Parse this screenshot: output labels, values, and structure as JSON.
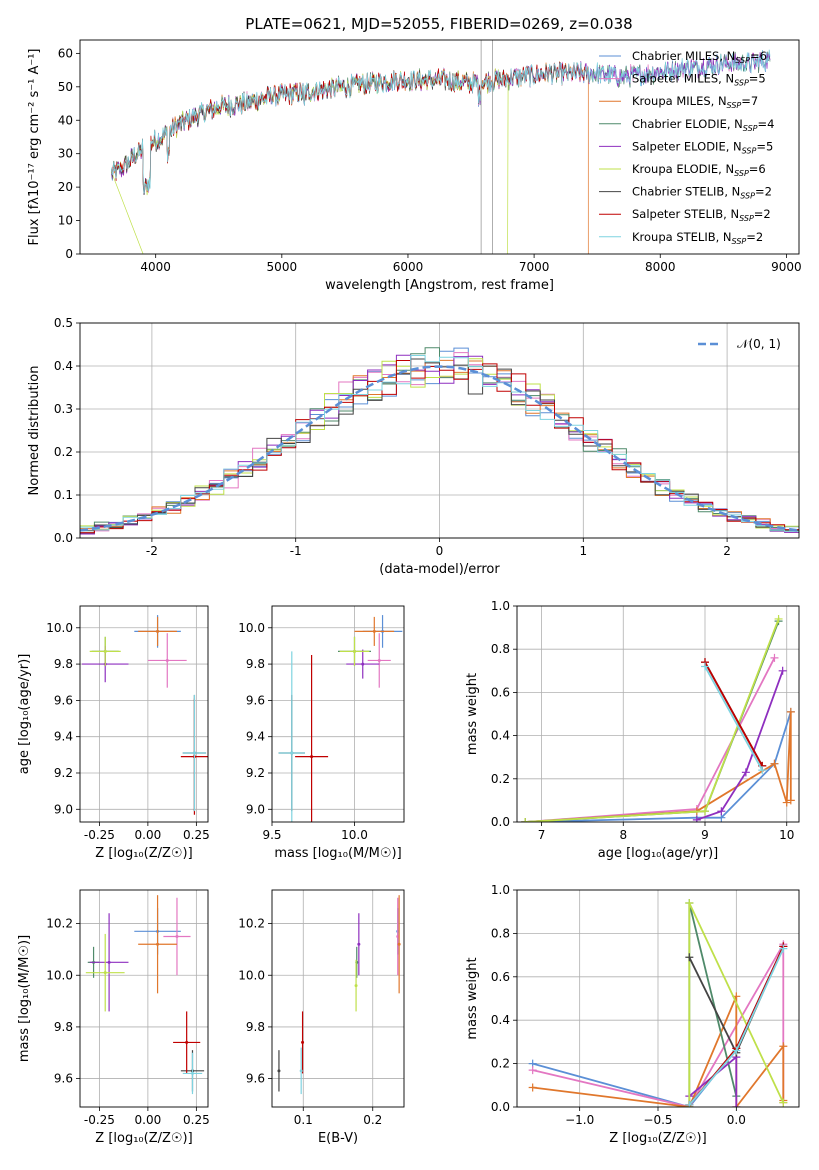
{
  "figure": {
    "title": "PLATE=0621, MJD=52055, FIBERID=0269, z=0.038"
  },
  "models": [
    {
      "name": "Chabrier MILES",
      "nssp": "6",
      "color": "#5b8fd6"
    },
    {
      "name": "Salpeter MILES",
      "nssp": "5",
      "color": "#e377c2"
    },
    {
      "name": "Kroupa MILES",
      "nssp": "7",
      "color": "#e0772c"
    },
    {
      "name": "Chabrier ELODIE",
      "nssp": "4",
      "color": "#4f8a6a"
    },
    {
      "name": "Salpeter ELODIE",
      "nssp": "5",
      "color": "#8e2fbf"
    },
    {
      "name": "Kroupa ELODIE",
      "nssp": "6",
      "color": "#bfe04a"
    },
    {
      "name": "Chabrier STELIB",
      "nssp": "2",
      "color": "#444444"
    },
    {
      "name": "Salpeter STELIB",
      "nssp": "2",
      "color": "#c00000"
    },
    {
      "name": "Kroupa STELIB",
      "nssp": "2",
      "color": "#7fd3e0"
    }
  ],
  "chart_data": [
    {
      "id": "spectrum",
      "type": "line",
      "title": "PLATE=0621, MJD=52055, FIBERID=0269, z=0.038",
      "xlabel": "wavelength [Angstrom, rest frame]",
      "ylabel": "Flux [fλ10⁻¹⁷ erg cm⁻² s⁻¹ A⁻¹]",
      "xlim": [
        3400,
        9100
      ],
      "ylim": [
        0,
        64
      ],
      "xticks": [
        4000,
        5000,
        6000,
        7000,
        8000,
        9000
      ],
      "yticks": [
        0,
        10,
        20,
        30,
        40,
        50,
        60
      ],
      "grid": false,
      "legend": "upper right",
      "continuum": {
        "x": [
          3650,
          3750,
          3850,
          3950,
          4050,
          4150,
          4300,
          4500,
          4700,
          4900,
          5100,
          5300,
          5500,
          5700,
          5900,
          6100,
          6300,
          6500,
          6700,
          6900,
          7100,
          7300,
          7500,
          7700,
          7900,
          8100,
          8300,
          8500,
          8700,
          8850
        ],
        "y": [
          24,
          26,
          30,
          33,
          35,
          38,
          41,
          44,
          45,
          47,
          48,
          49,
          50,
          51,
          52,
          52,
          52,
          51,
          52,
          53,
          54,
          54,
          54,
          53,
          54,
          55,
          56,
          57,
          57,
          58
        ]
      },
      "features": {
        "Kroupa ELODIE drop at": 3920,
        "Chabrier STELIB spikes at": [
          6580,
          6670
        ],
        "Kroupa ELODIE drop near": 6780,
        "Kroupa MILES drop at": 7430
      }
    },
    {
      "id": "residuals",
      "type": "line",
      "xlabel": "(data-model)/error",
      "ylabel": "Normed distribution",
      "xlim": [
        -2.5,
        2.5
      ],
      "ylim": [
        0,
        0.5
      ],
      "xticks": [
        -2,
        -1,
        0,
        1,
        2
      ],
      "yticks": [
        0.0,
        0.1,
        0.2,
        0.3,
        0.4,
        0.5
      ],
      "grid": true,
      "legend_label": "𝒩(0, 1)",
      "legend": "upper right",
      "gaussian": {
        "mean": 0,
        "sigma": 1,
        "color": "#5b8fd6"
      },
      "bin_width": 0.1
    },
    {
      "id": "age_vs_z",
      "type": "scatter",
      "xlabel": "Z [log₁₀(Z/Z☉)]",
      "ylabel": "age  [log₁₀(age/yr)]",
      "xlim": [
        -0.35,
        0.31
      ],
      "ylim": [
        8.93,
        10.12
      ],
      "xticks": [
        -0.25,
        0.0,
        0.25
      ],
      "yticks": [
        9.0,
        9.2,
        9.4,
        9.6,
        9.8,
        10.0
      ],
      "grid": true,
      "points": [
        {
          "model": 0,
          "x": 0.05,
          "y": 9.98,
          "xerr": 0.12,
          "yerr": 0.09
        },
        {
          "model": 1,
          "x": 0.1,
          "y": 9.82,
          "xerr": 0.1,
          "yerr": 0.15
        },
        {
          "model": 2,
          "x": 0.05,
          "y": 9.98,
          "xerr": 0.1,
          "yerr": 0.08
        },
        {
          "model": 3,
          "x": -0.22,
          "y": 9.87,
          "xerr": 0.07,
          "yerr": 0.08
        },
        {
          "model": 4,
          "x": -0.22,
          "y": 9.8,
          "xerr": 0.12,
          "yerr": 0.1
        },
        {
          "model": 5,
          "x": -0.22,
          "y": 9.87,
          "xerr": 0.08,
          "yerr": 0.08
        },
        {
          "model": 6,
          "x": 0.24,
          "y": 9.31,
          "xerr": 0.06,
          "yerr": 0.32
        },
        {
          "model": 7,
          "x": 0.24,
          "y": 9.29,
          "xerr": 0.07,
          "yerr": 0.32
        },
        {
          "model": 8,
          "x": 0.24,
          "y": 9.31,
          "xerr": 0.06,
          "yerr": 0.32
        }
      ]
    },
    {
      "id": "age_vs_mass",
      "type": "scatter",
      "xlabel": "mass [log₁₀(M/M☉)]",
      "ylabel": "",
      "xlim": [
        9.5,
        10.3
      ],
      "ylim": [
        8.93,
        10.12
      ],
      "xticks": [
        9.5,
        10.0
      ],
      "yticks": [
        9.0,
        9.2,
        9.4,
        9.6,
        9.8,
        10.0
      ],
      "grid": true,
      "points": [
        {
          "model": 0,
          "x": 10.17,
          "y": 9.98,
          "xerr": 0.12,
          "yerr": 0.09
        },
        {
          "model": 1,
          "x": 10.15,
          "y": 9.82,
          "xerr": 0.07,
          "yerr": 0.15
        },
        {
          "model": 2,
          "x": 10.12,
          "y": 9.98,
          "xerr": 0.12,
          "yerr": 0.08
        },
        {
          "model": 3,
          "x": 10.0,
          "y": 9.87,
          "xerr": 0.1,
          "yerr": 0.08
        },
        {
          "model": 4,
          "x": 10.05,
          "y": 9.8,
          "xerr": 0.1,
          "yerr": 0.08
        },
        {
          "model": 5,
          "x": 10.0,
          "y": 9.87,
          "xerr": 0.09,
          "yerr": 0.08
        },
        {
          "model": 6,
          "x": 9.62,
          "y": 9.31,
          "xerr": 0.08,
          "yerr": 0.32
        },
        {
          "model": 7,
          "x": 9.74,
          "y": 9.29,
          "xerr": 0.1,
          "yerr": 0.56
        },
        {
          "model": 8,
          "x": 9.62,
          "y": 9.31,
          "xerr": 0.08,
          "yerr": 0.56
        }
      ]
    },
    {
      "id": "mass_weight_vs_age",
      "type": "line",
      "xlabel": "age  [log₁₀(age/yr)]",
      "ylabel": "mass weight",
      "xlim": [
        6.7,
        10.15
      ],
      "ylim": [
        0,
        1.0
      ],
      "xticks": [
        7,
        8,
        9,
        10
      ],
      "yticks": [
        0.0,
        0.2,
        0.4,
        0.6,
        0.8,
        1.0
      ],
      "grid": true,
      "series": [
        {
          "model": 0,
          "x": [
            6.8,
            8.9,
            9.2,
            9.85,
            10.05
          ],
          "y": [
            0.0,
            0.02,
            0.02,
            0.27,
            0.51
          ]
        },
        {
          "model": 1,
          "x": [
            6.8,
            8.9,
            9.85
          ],
          "y": [
            0.0,
            0.06,
            0.76
          ]
        },
        {
          "model": 2,
          "x": [
            6.8,
            8.9,
            9.85,
            10.0,
            10.05,
            10.05
          ],
          "y": [
            0.0,
            0.05,
            0.27,
            0.09,
            0.51,
            0.1
          ]
        },
        {
          "model": 3,
          "x": [
            6.8,
            9.0,
            9.9
          ],
          "y": [
            0.0,
            0.05,
            0.93
          ]
        },
        {
          "model": 4,
          "x": [
            8.9,
            9.2,
            9.5,
            9.95
          ],
          "y": [
            0.01,
            0.05,
            0.23,
            0.7
          ]
        },
        {
          "model": 5,
          "x": [
            6.8,
            9.0,
            9.9
          ],
          "y": [
            0.0,
            0.05,
            0.94
          ]
        },
        {
          "model": 6,
          "x": [
            9.0,
            9.7
          ],
          "y": [
            0.74,
            0.26
          ]
        },
        {
          "model": 7,
          "x": [
            9.0,
            9.7
          ],
          "y": [
            0.74,
            0.26
          ]
        },
        {
          "model": 8,
          "x": [
            9.0,
            9.7
          ],
          "y": [
            0.72,
            0.24
          ]
        }
      ]
    },
    {
      "id": "mass_vs_z",
      "type": "scatter",
      "xlabel": "Z [log₁₀(Z/Z☉)]",
      "ylabel": "mass [log₁₀(M/M☉)]",
      "xlim": [
        -0.35,
        0.31
      ],
      "ylim": [
        9.49,
        10.33
      ],
      "xticks": [
        -0.25,
        0.0,
        0.25
      ],
      "yticks": [
        9.6,
        9.8,
        10.0,
        10.2
      ],
      "grid": true,
      "points": [
        {
          "model": 0,
          "x": 0.05,
          "y": 10.17,
          "xerr": 0.12,
          "yerr": 0.09
        },
        {
          "model": 1,
          "x": 0.15,
          "y": 10.15,
          "xerr": 0.07,
          "yerr": 0.15
        },
        {
          "model": 2,
          "x": 0.05,
          "y": 10.12,
          "xerr": 0.1,
          "yerr": 0.19
        },
        {
          "model": 3,
          "x": -0.28,
          "y": 10.05,
          "xerr": 0.03,
          "yerr": 0.06
        },
        {
          "model": 4,
          "x": -0.2,
          "y": 10.05,
          "xerr": 0.1,
          "yerr": 0.19
        },
        {
          "model": 5,
          "x": -0.22,
          "y": 10.01,
          "xerr": 0.1,
          "yerr": 0.15
        },
        {
          "model": 6,
          "x": 0.23,
          "y": 9.63,
          "xerr": 0.06,
          "yerr": 0.08
        },
        {
          "model": 7,
          "x": 0.2,
          "y": 9.74,
          "xerr": 0.07,
          "yerr": 0.12
        },
        {
          "model": 8,
          "x": 0.23,
          "y": 9.62,
          "xerr": 0.05,
          "yerr": 0.08
        }
      ]
    },
    {
      "id": "mass_vs_ebv",
      "type": "scatter",
      "xlabel": "E(B-V)",
      "ylabel": "",
      "xlim": [
        0.055,
        0.245
      ],
      "ylim": [
        9.49,
        10.33
      ],
      "xticks": [
        0.1,
        0.2
      ],
      "yticks": [
        9.6,
        9.8,
        10.0,
        10.2
      ],
      "grid": true,
      "points": [
        {
          "model": 0,
          "x": 0.236,
          "y": 10.17,
          "xerr": 0,
          "yerr": 0.09
        },
        {
          "model": 1,
          "x": 0.236,
          "y": 10.15,
          "xerr": 0,
          "yerr": 0.15
        },
        {
          "model": 2,
          "x": 0.238,
          "y": 10.12,
          "xerr": 0,
          "yerr": 0.19
        },
        {
          "model": 3,
          "x": 0.177,
          "y": 10.05,
          "xerr": 0,
          "yerr": 0.06
        },
        {
          "model": 4,
          "x": 0.18,
          "y": 10.12,
          "xerr": 0,
          "yerr": 0.12
        },
        {
          "model": 5,
          "x": 0.176,
          "y": 9.96,
          "xerr": 0,
          "yerr": 0.1
        },
        {
          "model": 6,
          "x": 0.065,
          "y": 9.63,
          "xerr": 0,
          "yerr": 0.08
        },
        {
          "model": 7,
          "x": 0.099,
          "y": 9.74,
          "xerr": 0,
          "yerr": 0.12
        },
        {
          "model": 8,
          "x": 0.097,
          "y": 9.63,
          "xerr": 0,
          "yerr": 0.09
        }
      ]
    },
    {
      "id": "mass_weight_vs_z",
      "type": "line",
      "xlabel": "Z [log₁₀(Z/Z☉)]",
      "ylabel": "mass weight",
      "xlim": [
        -1.4,
        0.4
      ],
      "ylim": [
        0,
        1.0
      ],
      "xticks": [
        -1.0,
        -0.5,
        0.0
      ],
      "yticks": [
        0.0,
        0.2,
        0.4,
        0.6,
        0.8,
        1.0
      ],
      "grid": true,
      "series": [
        {
          "model": 0,
          "x": [
            -1.3,
            -0.3,
            0.0,
            0.3
          ],
          "y": [
            0.2,
            0.0,
            0.27,
            0.74
          ]
        },
        {
          "model": 1,
          "x": [
            -1.3,
            -0.3,
            0.3,
            0.3
          ],
          "y": [
            0.17,
            0.0,
            0.75,
            0.02
          ]
        },
        {
          "model": 2,
          "x": [
            -1.3,
            -0.3,
            0.0,
            0.0,
            0.3,
            0.3
          ],
          "y": [
            0.09,
            0.0,
            0.51,
            0.0,
            0.28,
            0.03
          ]
        },
        {
          "model": 3,
          "x": [
            -0.3,
            -0.3,
            0.0
          ],
          "y": [
            0.0,
            0.94,
            0.05
          ]
        },
        {
          "model": 4,
          "x": [
            -0.3,
            0.0,
            0.0
          ],
          "y": [
            0.05,
            0.23,
            0.0
          ]
        },
        {
          "model": 5,
          "x": [
            -0.3,
            -0.3,
            0.3
          ],
          "y": [
            0.0,
            0.94,
            0.02
          ]
        },
        {
          "model": 6,
          "x": [
            -0.3,
            0.0,
            0.3
          ],
          "y": [
            0.69,
            0.25,
            0.74
          ]
        },
        {
          "model": 7,
          "x": [
            -0.3,
            0.0,
            0.3
          ],
          "y": [
            0.01,
            0.27,
            0.74
          ]
        },
        {
          "model": 8,
          "x": [
            -0.3,
            0.0,
            0.3
          ],
          "y": [
            0.01,
            0.26,
            0.73
          ]
        }
      ]
    }
  ]
}
